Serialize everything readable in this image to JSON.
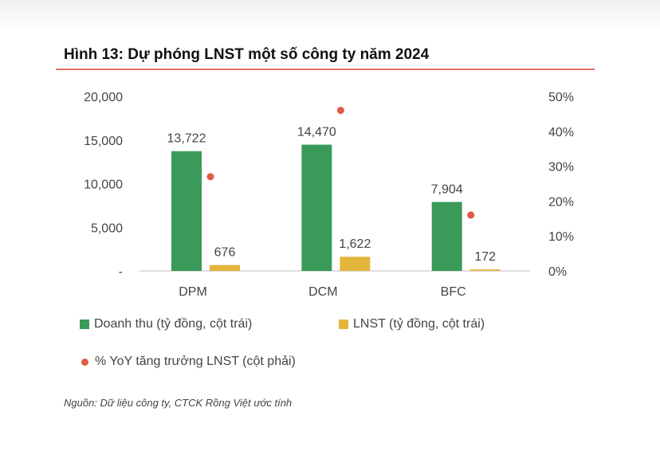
{
  "figure": {
    "title": "Hình 13: Dự phóng LNST một số công ty năm 2024",
    "source": "Nguồn: Dữ liệu công ty, CTCK Rồng Việt ước tính"
  },
  "chart_data": {
    "type": "bar",
    "categories": [
      "DPM",
      "DCM",
      "BFC"
    ],
    "series": [
      {
        "name": "Doanh thu (tỷ đồng, cột trái)",
        "type": "bar",
        "axis": "left",
        "color": "#3a9a5a",
        "values": [
          13722,
          14470,
          7904
        ],
        "labels": [
          "13,722",
          "14,470",
          "7,904"
        ]
      },
      {
        "name": "LNST (tỷ đồng, cột trái)",
        "type": "bar",
        "axis": "left",
        "color": "#e3b63b",
        "values": [
          676,
          1622,
          172
        ],
        "labels": [
          "676",
          "1,622",
          "172"
        ]
      },
      {
        "name": "% YoY tăng trưởng LNST (cột phải)",
        "type": "scatter",
        "axis": "right",
        "color": "#e05a45",
        "values": [
          27,
          46,
          16
        ]
      }
    ],
    "left_axis": {
      "ylim": [
        0,
        20000
      ],
      "ticks": [
        "-",
        "5,000",
        "10,000",
        "15,000",
        "20,000"
      ]
    },
    "right_axis": {
      "ylim": [
        0,
        50
      ],
      "ticks": [
        "0%",
        "10%",
        "20%",
        "30%",
        "40%",
        "50%"
      ]
    },
    "grid": false,
    "legend_position": "bottom"
  }
}
